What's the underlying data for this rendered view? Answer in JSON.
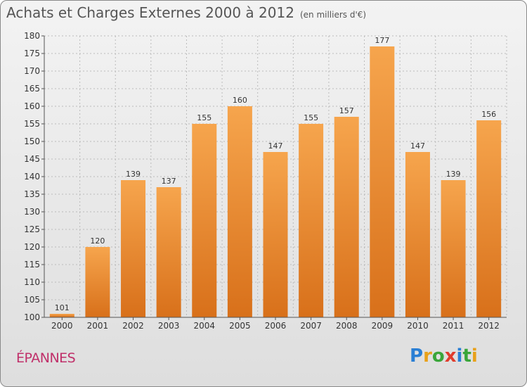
{
  "title": "Achats et Charges Externes 2000 à 2012",
  "unit": "(en milliers d'€)",
  "place": "ÉPANNES",
  "logo": {
    "letters": [
      "P",
      "r",
      "o",
      "x",
      "i",
      "t",
      "i"
    ],
    "colors": [
      "#2a7fd4",
      "#e8a11a",
      "#3aa63a",
      "#e03c2c",
      "#2a7fd4",
      "#3aa63a",
      "#e8a11a"
    ]
  },
  "colors": {
    "bar_top": "#f6a54d",
    "bar_bottom": "#d8701a",
    "axis": "#555555",
    "grid": "#bbbbbb"
  },
  "chart_data": {
    "type": "bar",
    "categories": [
      "2000",
      "2001",
      "2002",
      "2003",
      "2004",
      "2005",
      "2006",
      "2007",
      "2008",
      "2009",
      "2010",
      "2011",
      "2012"
    ],
    "values": [
      101,
      120,
      139,
      137,
      155,
      160,
      147,
      155,
      157,
      177,
      147,
      139,
      156
    ],
    "ylim": [
      100,
      180
    ],
    "yticks": [
      100,
      105,
      110,
      115,
      120,
      125,
      130,
      135,
      140,
      145,
      150,
      155,
      160,
      165,
      170,
      175,
      180
    ],
    "grid": true
  }
}
